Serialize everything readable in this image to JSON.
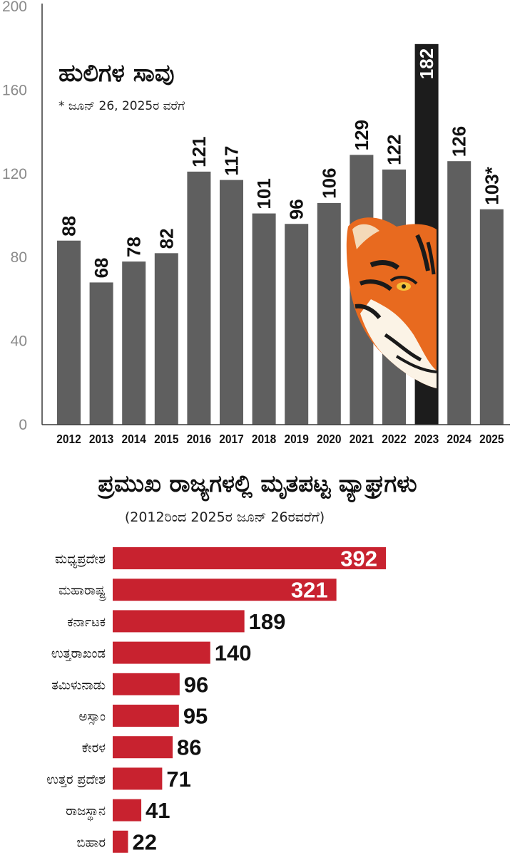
{
  "bar_chart": {
    "title": "ಹುಲಿಗಳ ಸಾವು",
    "subtitle": "* ಜೂನ್ 26, 2025ರ ವರೆಗೆ"
  },
  "hbar_chart": {
    "title": "ಪ್ರಮುಖ ರಾಜ್ಯಗಳಲ್ಲಿ ಮೃತಪಟ್ಟ ವ್ಯಾಘ್ರಗಳು",
    "subtitle": "(2012ರಿಂದ 2025ರ ಜೂನ್ 26ರವರೆಗೆ)"
  },
  "colors": {
    "bar": "#5f5f5f",
    "highlight": "#1c1c1c",
    "state_bar": "#c8222f",
    "axis": "#3a3a3a",
    "tick_text": "#8a8a8a"
  },
  "chart_data": [
    {
      "type": "bar",
      "title": "ಹುಲಿಗಳ ಸಾವು",
      "subtitle": "* ಜೂನ್ 26, 2025ರ ವರೆಗೆ",
      "categories": [
        "2012",
        "2013",
        "2014",
        "2015",
        "2016",
        "2017",
        "2018",
        "2019",
        "2020",
        "2021",
        "2022",
        "2023",
        "2024",
        "2025"
      ],
      "values": [
        88,
        68,
        78,
        82,
        121,
        117,
        101,
        96,
        106,
        129,
        122,
        182,
        126,
        103
      ],
      "labels": [
        "88",
        "68",
        "78",
        "82",
        "121",
        "117",
        "101",
        "96",
        "106",
        "129",
        "122",
        "182",
        "126",
        "103*"
      ],
      "highlight_index": 11,
      "yticks": [
        "0",
        "40",
        "80",
        "120",
        "160",
        "200"
      ],
      "ylim": [
        0,
        200
      ],
      "xlabel": "",
      "ylabel": "",
      "grid": false
    },
    {
      "type": "bar",
      "orientation": "horizontal",
      "title": "ಪ್ರಮುಖ ರಾಜ್ಯಗಳಲ್ಲಿ ಮೃತಪಟ್ಟ ವ್ಯಾಘ್ರಗಳು",
      "subtitle": "(2012ರಿಂದ 2025ರ ಜೂನ್ 26ರವರೆಗೆ)",
      "categories": [
        "ಮಧ್ಯಪ್ರದೇಶ",
        "ಮಹಾರಾಷ್ಟ್ರ",
        "ಕರ್ನಾಟಕ",
        "ಉತ್ತರಾಖಂಡ",
        "ತಮಿಳುನಾಡು",
        "ಅಸ್ಸಾಂ",
        "ಕೇರಳ",
        "ಉತ್ತರ ಪ್ರದೇಶ",
        "ರಾಜಸ್ಥಾನ",
        "ಬಿಹಾರ"
      ],
      "values": [
        392,
        321,
        189,
        140,
        96,
        95,
        86,
        71,
        41,
        22
      ],
      "labels": [
        "392",
        "321",
        "189",
        "140",
        "96",
        "95",
        "86",
        "71",
        "41",
        "22"
      ],
      "xlim": [
        0,
        392
      ],
      "grid": false
    }
  ]
}
